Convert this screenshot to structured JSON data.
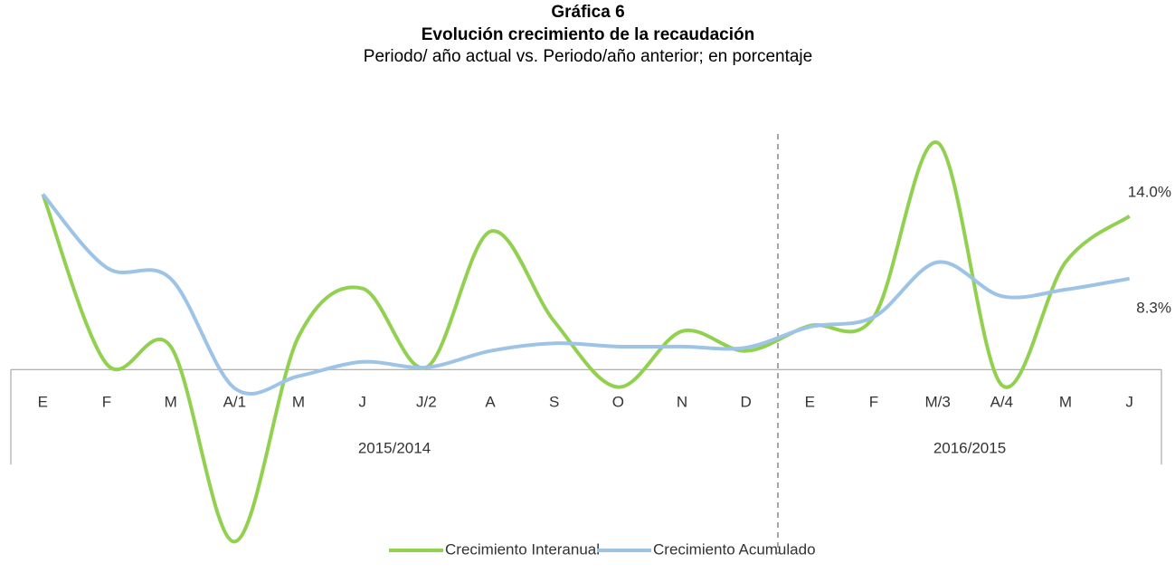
{
  "chart_data": {
    "type": "line",
    "title": "Gráfica 6",
    "subtitle": "Evolución crecimiento de la recaudación",
    "description": "Periodo/ año actual vs. Periodo/año anterior; en porcentaje",
    "groups": [
      {
        "name": "2015/2014",
        "categories": [
          "E",
          "F",
          "M",
          "A/1",
          "M",
          "J",
          "J/2",
          "A",
          "S",
          "O",
          "N",
          "D"
        ]
      },
      {
        "name": "2016/2015",
        "categories": [
          "E",
          "F",
          "M/3",
          "A/4",
          "M",
          "J"
        ]
      }
    ],
    "series": [
      {
        "name": "Crecimiento Interanual",
        "color": "#92d050",
        "values": [
          16.0,
          0.5,
          2.1,
          -15.7,
          3.0,
          7.4,
          0.2,
          12.6,
          4.4,
          -1.6,
          3.5,
          1.7,
          4.0,
          4.8,
          20.7,
          -1.4,
          9.8,
          14.0
        ],
        "value_labels": [
          null,
          null,
          null,
          null,
          null,
          null,
          null,
          null,
          null,
          null,
          null,
          null,
          null,
          null,
          null,
          null,
          null,
          "14.0%"
        ]
      },
      {
        "name": "Crecimiento Acumulado",
        "color": "#9dc3e6",
        "values": [
          16.0,
          9.3,
          8.3,
          -1.7,
          -0.6,
          0.7,
          0.2,
          1.7,
          2.4,
          2.1,
          2.1,
          2.0,
          3.9,
          4.8,
          9.8,
          6.7,
          7.3,
          8.3
        ],
        "value_labels": [
          null,
          null,
          null,
          null,
          null,
          null,
          null,
          null,
          null,
          null,
          null,
          null,
          null,
          null,
          null,
          null,
          null,
          "8.3%"
        ]
      }
    ],
    "ylim": [
      -16.5,
      21.5
    ]
  }
}
